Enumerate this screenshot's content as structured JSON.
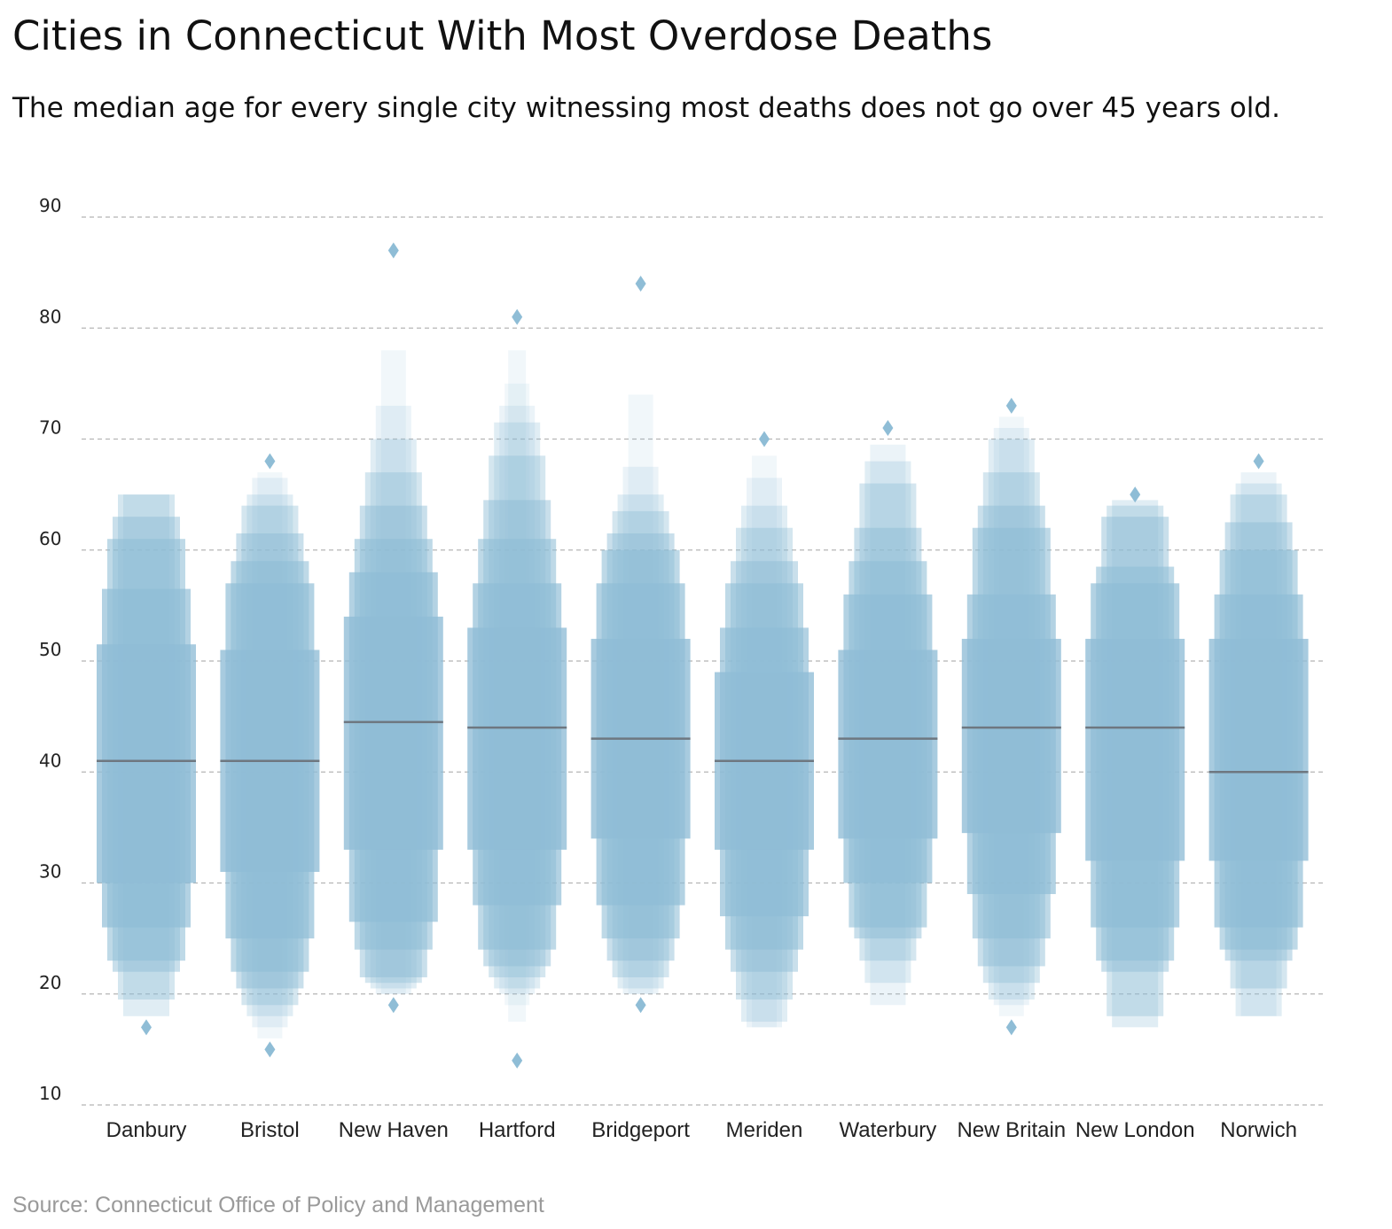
{
  "title": "Cities in Connecticut With Most Overdose Deaths",
  "subtitle": "The median age for every single city witnessing most deaths does not go over 45 years old.",
  "source": "Source: Connecticut Office of Policy and Management",
  "chart_data": {
    "type": "boxen",
    "title": "Cities in Connecticut With Most Overdose Deaths",
    "xlabel": "",
    "ylabel": "",
    "ylim": [
      10,
      90
    ],
    "yticks": [
      10,
      20,
      30,
      40,
      50,
      60,
      70,
      80,
      90
    ],
    "grid": true,
    "colors": {
      "box_base": "#8fbdd6",
      "median": "#6e7780",
      "outlier": "#8fbdd6",
      "grid": "#b5b5b5"
    },
    "categories": [
      "Danbury",
      "Bristol",
      "New Haven",
      "Hartford",
      "Bridgeport",
      "Meriden",
      "Waterbury",
      "New Britain",
      "New London",
      "Norwich"
    ],
    "series": [
      {
        "category": "Danbury",
        "median": 41,
        "levels": [
          [
            30,
            51.5
          ],
          [
            26,
            56.5
          ],
          [
            23,
            61
          ],
          [
            22,
            63
          ],
          [
            19.5,
            65
          ],
          [
            18,
            65
          ]
        ],
        "outliers": [
          17
        ]
      },
      {
        "category": "Bristol",
        "median": 41,
        "levels": [
          [
            31,
            51
          ],
          [
            25,
            57
          ],
          [
            22,
            59
          ],
          [
            20.5,
            61.5
          ],
          [
            19,
            64
          ],
          [
            18,
            65
          ],
          [
            17,
            66.5
          ],
          [
            16,
            67
          ]
        ],
        "outliers": [
          15,
          68
        ]
      },
      {
        "category": "New Haven",
        "median": 44.5,
        "levels": [
          [
            33,
            54
          ],
          [
            26.5,
            58
          ],
          [
            24,
            61
          ],
          [
            21.5,
            64
          ],
          [
            21,
            67
          ],
          [
            20.5,
            70
          ],
          [
            20,
            73
          ],
          [
            20,
            78
          ]
        ],
        "outliers": [
          19,
          87
        ]
      },
      {
        "category": "Hartford",
        "median": 44,
        "levels": [
          [
            33,
            53
          ],
          [
            28,
            57
          ],
          [
            24,
            61
          ],
          [
            22.5,
            64.5
          ],
          [
            21.5,
            68.5
          ],
          [
            20.5,
            71.5
          ],
          [
            20,
            73
          ],
          [
            19,
            75
          ],
          [
            17.5,
            78
          ]
        ],
        "outliers": [
          14,
          81
        ]
      },
      {
        "category": "Bridgeport",
        "median": 43,
        "levels": [
          [
            34,
            52
          ],
          [
            28,
            57
          ],
          [
            25,
            60
          ],
          [
            23,
            61.5
          ],
          [
            21.5,
            63.5
          ],
          [
            20.5,
            65
          ],
          [
            20,
            67.5
          ],
          [
            20,
            74
          ]
        ],
        "outliers": [
          19,
          84
        ]
      },
      {
        "category": "Meriden",
        "median": 41,
        "levels": [
          [
            33,
            49
          ],
          [
            27,
            53
          ],
          [
            24,
            57
          ],
          [
            22,
            59
          ],
          [
            19.5,
            62
          ],
          [
            17.5,
            64
          ],
          [
            17,
            66.5
          ],
          [
            17,
            68.5
          ]
        ],
        "outliers": [
          70
        ]
      },
      {
        "category": "Waterbury",
        "median": 43,
        "levels": [
          [
            34,
            51
          ],
          [
            30,
            56
          ],
          [
            26,
            59
          ],
          [
            25,
            62
          ],
          [
            23,
            66
          ],
          [
            21,
            68
          ],
          [
            19,
            69.5
          ]
        ],
        "outliers": [
          71
        ]
      },
      {
        "category": "New Britain",
        "median": 44,
        "levels": [
          [
            34.5,
            52
          ],
          [
            29,
            56
          ],
          [
            25,
            62
          ],
          [
            22.5,
            64
          ],
          [
            21,
            67
          ],
          [
            19.5,
            70
          ],
          [
            19,
            71
          ],
          [
            18,
            72
          ]
        ],
        "outliers": [
          17,
          73
        ]
      },
      {
        "category": "New London",
        "median": 44,
        "levels": [
          [
            32,
            52
          ],
          [
            26,
            57
          ],
          [
            23,
            58.5
          ],
          [
            22,
            63
          ],
          [
            18,
            64
          ],
          [
            17,
            64.5
          ]
        ],
        "outliers": [
          65
        ]
      },
      {
        "category": "Norwich",
        "median": 40,
        "levels": [
          [
            32,
            52
          ],
          [
            26,
            56
          ],
          [
            24,
            60
          ],
          [
            23,
            62.5
          ],
          [
            20.5,
            65
          ],
          [
            18,
            66
          ],
          [
            18,
            67
          ]
        ],
        "outliers": [
          68
        ]
      }
    ]
  }
}
